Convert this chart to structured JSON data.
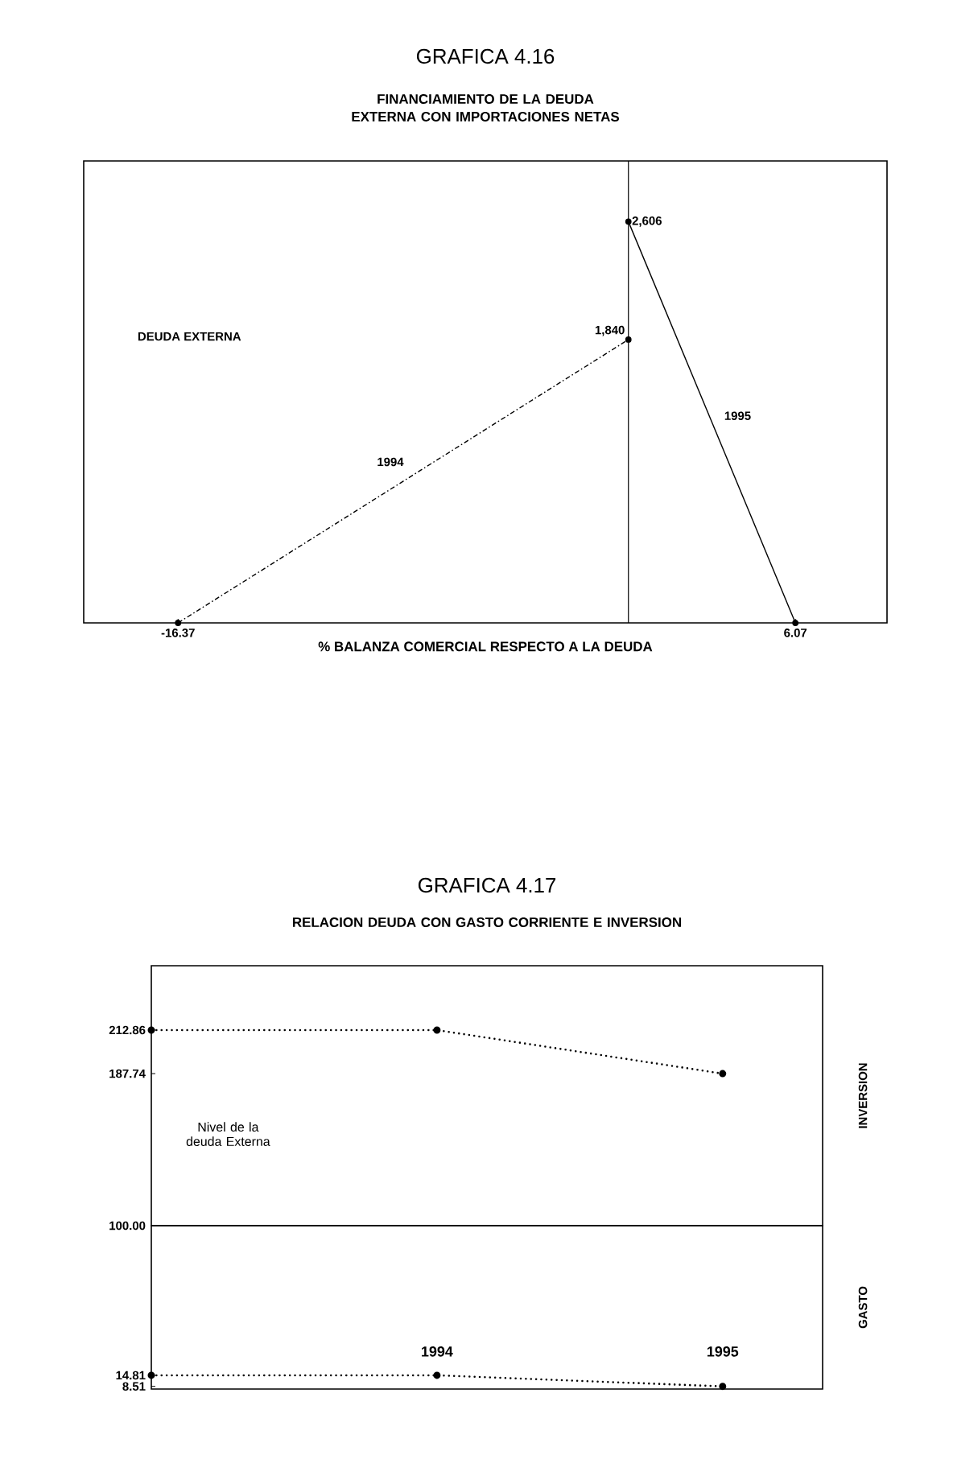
{
  "chart_data": [
    {
      "type": "line",
      "title": "GRAFICA 4.16",
      "subtitle": "FINANCIAMIENTO DE LA DEUDA EXTERNA CON IMPORTACIONES NETAS",
      "xlabel": "% BALANZA COMERCIAL RESPECTO A LA DEUDA",
      "ylabel": "DEUDA EXTERNA",
      "xlim": [
        -19.8,
        9.4
      ],
      "ylim": [
        0,
        3000
      ],
      "xticks": [
        -16.37,
        6.07
      ],
      "tick_labels": "x",
      "marker": "circle",
      "series": [
        {
          "name": "1994",
          "color": "#000000",
          "x": [
            -16.37,
            0
          ],
          "values": [
            0,
            1840
          ],
          "value_labels": [
            null,
            "1,840"
          ],
          "line_style": "dashed"
        },
        {
          "name": "1995",
          "color": "#000000",
          "x": [
            0,
            6.07
          ],
          "values": [
            2606,
            0
          ],
          "value_labels": [
            "2,606",
            null
          ],
          "line_style": "solid"
        }
      ],
      "ref_lines": [
        {
          "axis": "x",
          "value": 0
        }
      ]
    },
    {
      "type": "line",
      "title": "GRAFICA 4.17",
      "subtitle": "RELACION DEUDA CON GASTO CORRIENTE E INVERSION",
      "ylabel": "INVERSION",
      "annotations": [
        "Nivel de la deuda Externa"
      ],
      "categories": [
        null,
        "1994",
        "1995"
      ],
      "values": [
        212.86,
        212.86,
        187.74
      ],
      "color": "#000000",
      "ylim": [
        100,
        250
      ],
      "yticks": [
        212.86,
        187.74,
        {
          "value": 100,
          "label": "100.00"
        }
      ],
      "tick_labels": "y",
      "marker": "circle",
      "line_style": "dotted"
    },
    {
      "type": "line",
      "ylabel": "GASTO",
      "categories": [
        null,
        "1994",
        "1995"
      ],
      "values": [
        14.81,
        14.81,
        8.51
      ],
      "color": "#000000",
      "ylim": [
        7,
        100
      ],
      "yticks": [
        14.81,
        8.51
      ],
      "marker": "circle",
      "line_style": "dotted"
    }
  ]
}
